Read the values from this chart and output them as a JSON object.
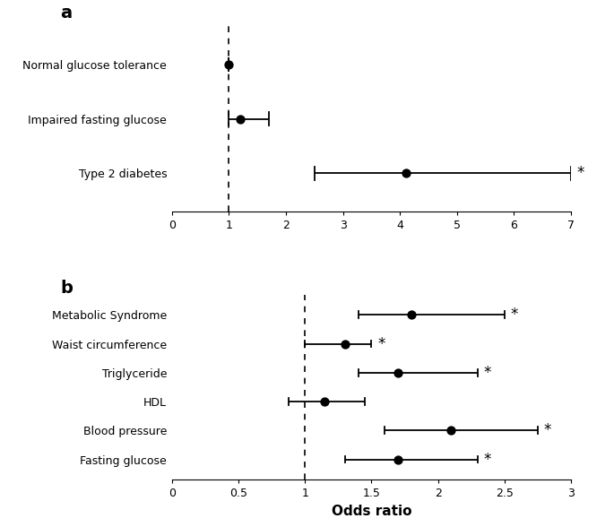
{
  "panel_a": {
    "title": "a",
    "categories": [
      "Normal glucose tolerance",
      "Impaired fasting glucose",
      "Type 2 diabetes"
    ],
    "or_values": [
      1.0,
      1.2,
      4.1
    ],
    "ci_low": [
      1.0,
      1.0,
      2.5
    ],
    "ci_high": [
      1.0,
      1.7,
      7.0
    ],
    "significant": [
      false,
      false,
      true
    ],
    "xlim": [
      0,
      7
    ],
    "xticks": [
      0,
      1,
      2,
      3,
      4,
      5,
      6,
      7
    ],
    "dashed_line_x": 1.0
  },
  "panel_b": {
    "title": "b",
    "categories": [
      "Metabolic Syndrome",
      "Waist circumference",
      "Triglyceride",
      "HDL",
      "Blood pressure",
      "Fasting glucose"
    ],
    "or_values": [
      1.8,
      1.3,
      1.7,
      1.15,
      2.1,
      1.7
    ],
    "ci_low": [
      1.4,
      1.0,
      1.4,
      0.88,
      1.6,
      1.3
    ],
    "ci_high": [
      2.5,
      1.5,
      2.3,
      1.45,
      2.75,
      2.3
    ],
    "significant": [
      true,
      true,
      true,
      false,
      true,
      true
    ],
    "xlim": [
      0,
      3.0
    ],
    "xticks": [
      0,
      0.5,
      1.0,
      1.5,
      2.0,
      2.5,
      3.0
    ],
    "xlabel": "Odds ratio",
    "dashed_line_x": 1.0
  },
  "dot_size": 55,
  "dot_color": "#000000",
  "line_color": "#000000",
  "cap_size": 0.12,
  "star_fontsize": 12,
  "label_fontsize": 9,
  "tick_fontsize": 9,
  "title_fontsize": 14,
  "xlabel_fontsize": 11
}
